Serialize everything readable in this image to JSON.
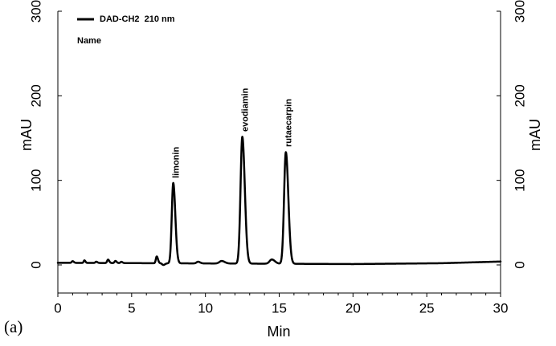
{
  "chart_data": {
    "type": "line",
    "panel_label": "(a)",
    "xlabel": "Min",
    "ylabel_left": "mAU",
    "ylabel_right": "mAU",
    "xlim": [
      0,
      30
    ],
    "ylim": [
      -30,
      300
    ],
    "x_ticks": [
      0,
      5,
      10,
      15,
      20,
      25,
      30
    ],
    "y_ticks": [
      0,
      100,
      200,
      300
    ],
    "grid": false,
    "legend": {
      "position": "top-left",
      "series_label": "DAD-CH2  210 nm",
      "subtitle": "Name"
    },
    "series": [
      {
        "name": "DAD-CH2  210 nm",
        "color": "#000000",
        "baseline": 2,
        "drift": [
          [
            0,
            0.5
          ],
          [
            20,
            -1
          ],
          [
            26,
            0
          ],
          [
            30,
            2
          ]
        ],
        "peaks": [
          {
            "rt": 1.0,
            "height": 2,
            "width": 0.06
          },
          {
            "rt": 1.8,
            "height": 3,
            "width": 0.05
          },
          {
            "rt": 2.6,
            "height": 1.5,
            "width": 0.06
          },
          {
            "rt": 3.4,
            "height": 4,
            "width": 0.06
          },
          {
            "rt": 3.9,
            "height": 2.5,
            "width": 0.06
          },
          {
            "rt": 4.3,
            "height": 1.5,
            "width": 0.06
          },
          {
            "rt": 6.7,
            "height": 8,
            "width": 0.06
          },
          {
            "rt": 7.15,
            "height": -2,
            "width": 0.08
          },
          {
            "rt": 7.82,
            "height": 95,
            "width": 0.1
          },
          {
            "rt": 9.5,
            "height": 2,
            "width": 0.1
          },
          {
            "rt": 11.1,
            "height": 3,
            "width": 0.15
          },
          {
            "rt": 12.5,
            "height": 150,
            "width": 0.12
          },
          {
            "rt": 14.5,
            "height": 5,
            "width": 0.15
          },
          {
            "rt": 15.45,
            "height": 132,
            "width": 0.12
          }
        ]
      }
    ],
    "annotations": [
      {
        "text": "limonin",
        "x": 7.82,
        "y": 95
      },
      {
        "text": "evodiamin",
        "x": 12.5,
        "y": 150
      },
      {
        "text": "rutaecarpin",
        "x": 15.45,
        "y": 132
      }
    ]
  }
}
